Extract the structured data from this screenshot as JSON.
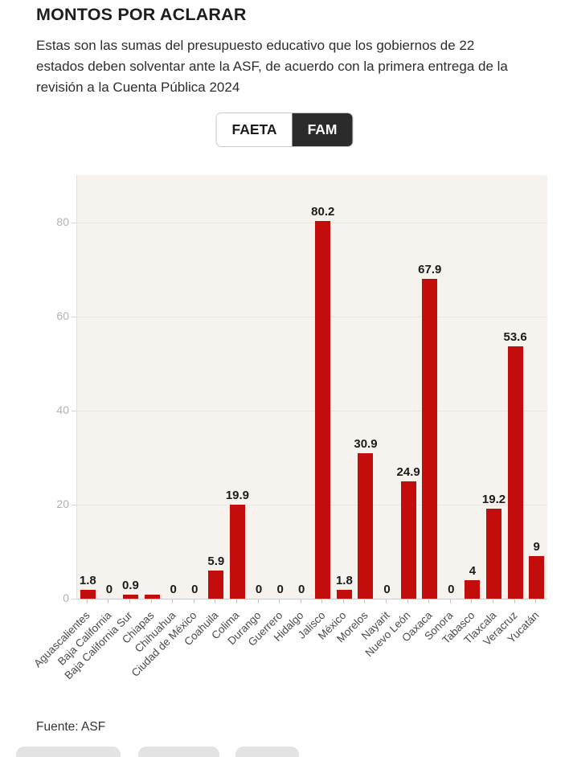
{
  "header": {
    "title": "MONTOS POR ACLARAR",
    "subtitle_lines": [
      "Estas son las sumas del presupuesto educativo que los gobiernos de 22",
      "estados deben solventar ante la ASF, de acuerdo con la primera entrega de la",
      "revisión a la Cuenta Pública 2024"
    ]
  },
  "tabs": [
    {
      "label": "FAETA",
      "active": false
    },
    {
      "label": "FAM",
      "active": true
    }
  ],
  "chart_data": {
    "type": "bar",
    "title": "MONTOS POR ACLARAR",
    "categories": [
      "Aguascalientes",
      "Baja California",
      "Baja California Sur",
      "Chiapas",
      "Chihuahua",
      "Ciudad de México",
      "Coahuila",
      "Colima",
      "Durango",
      "Guerrero",
      "Hidalgo",
      "Jalisco",
      "México",
      "Morelos",
      "Nayarit",
      "Nuevo León",
      "Oaxaca",
      "Sonora",
      "Tabasco",
      "Tlaxcala",
      "Veracruz",
      "Yucatán"
    ],
    "values": [
      1.8,
      0,
      0.9,
      0.8,
      0,
      0,
      5.9,
      19.9,
      0,
      0,
      0,
      80.2,
      1.8,
      30.9,
      0,
      24.9,
      67.9,
      0,
      4,
      19.2,
      53.6,
      9
    ],
    "bar_labels": [
      "1.8",
      "0",
      "0.9",
      "",
      "0",
      "0",
      "5.9",
      "19.9",
      "0",
      "0",
      "0",
      "80.2",
      "1.8",
      "30.9",
      "0",
      "24.9",
      "67.9",
      "0",
      "4",
      "19.2",
      "53.6",
      "9"
    ],
    "xlabel": "",
    "ylabel": "",
    "yticks": [
      0,
      20,
      40,
      60,
      80
    ],
    "ylim": [
      0,
      90
    ],
    "grid": true,
    "legend_position": "none",
    "bar_color": "#c30d0d",
    "plot_background": "#f6f3ef"
  },
  "footer": {
    "source_label": "Fuente: ASF"
  }
}
